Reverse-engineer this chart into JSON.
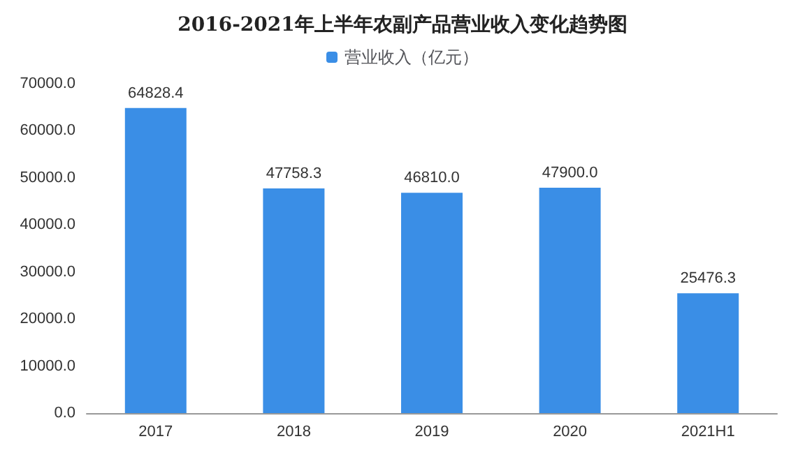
{
  "chart_data": {
    "type": "bar",
    "title": "2016-2021年上半年农副产品营业收入变化趋势图",
    "categories": [
      "2017",
      "2018",
      "2019",
      "2020",
      "2021H1"
    ],
    "series": [
      {
        "name": "营业收入（亿元）",
        "color": "#3a8ee6",
        "values": [
          64828.4,
          47758.3,
          46810.0,
          47900.0,
          25476.3
        ],
        "value_labels": [
          "64828.4",
          "47758.3",
          "46810.0",
          "47900.0",
          "25476.3"
        ]
      }
    ],
    "ylim": [
      0,
      70000
    ],
    "yticks": [
      {
        "value": 0,
        "label": "0.0"
      },
      {
        "value": 10000,
        "label": "10000.0"
      },
      {
        "value": 20000,
        "label": "20000.0"
      },
      {
        "value": 30000,
        "label": "30000.0"
      },
      {
        "value": 40000,
        "label": "40000.0"
      },
      {
        "value": 50000,
        "label": "50000.0"
      },
      {
        "value": 60000,
        "label": "60000.0"
      },
      {
        "value": 70000,
        "label": "70000.0"
      }
    ],
    "legend": "top"
  }
}
